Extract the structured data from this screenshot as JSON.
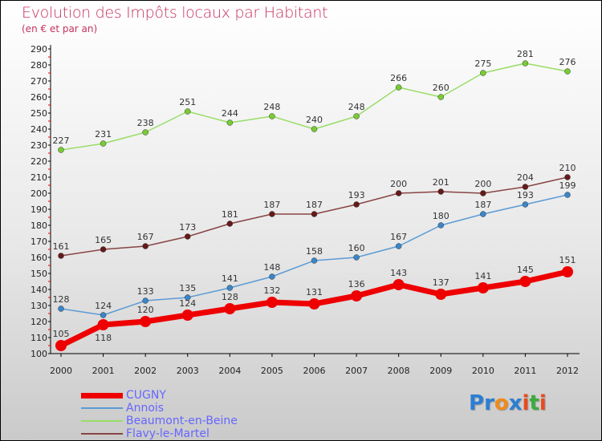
{
  "title": "Evolution des Impôts locaux par Habitant",
  "subtitle": "(en € et par an)",
  "logo": {
    "text": "Proxiti",
    "letters": [
      [
        "P",
        "#2a7fd4"
      ],
      [
        "r",
        "#2a7fd4"
      ],
      [
        "o",
        "#f08a1c"
      ],
      [
        "x",
        "#2a7fd4"
      ],
      [
        "i",
        "#e84c1c"
      ],
      [
        "t",
        "#3cab3c"
      ],
      [
        "i",
        "#e84c1c"
      ]
    ]
  },
  "chart_data": {
    "type": "line",
    "title": "Evolution des Impôts locaux par Habitant",
    "ylabel": "(en € et par an)",
    "x": [
      2000,
      2001,
      2002,
      2003,
      2004,
      2005,
      2006,
      2007,
      2008,
      2009,
      2010,
      2011,
      2012
    ],
    "ylim": [
      100,
      290
    ],
    "yticks": [
      100,
      110,
      120,
      130,
      140,
      150,
      160,
      170,
      180,
      190,
      200,
      210,
      220,
      230,
      240,
      250,
      260,
      270,
      280,
      290
    ],
    "legend_position": "bottom-left",
    "series": [
      {
        "name": "CUGNY",
        "color": "#ee0000",
        "width": 7,
        "r": 7,
        "values": [
          105,
          118,
          120,
          124,
          128,
          132,
          131,
          136,
          143,
          137,
          141,
          145,
          151
        ]
      },
      {
        "name": "Annois",
        "color": "#5b9bd5",
        "width": 1.5,
        "r": 3.5,
        "pt": "#3a86c8",
        "values": [
          128,
          124,
          133,
          135,
          141,
          148,
          158,
          160,
          167,
          180,
          187,
          193,
          199
        ]
      },
      {
        "name": "Beaumont-en-Beine",
        "color": "#99dd66",
        "width": 1.5,
        "r": 3.5,
        "pt": "#77cc33",
        "values": [
          227,
          231,
          238,
          251,
          244,
          248,
          240,
          248,
          266,
          260,
          275,
          281,
          276
        ]
      },
      {
        "name": "Flavy-le-Martel",
        "color": "#884444",
        "width": 1.5,
        "r": 3.5,
        "pt": "#661919",
        "values": [
          161,
          165,
          167,
          173,
          181,
          187,
          187,
          193,
          200,
          201,
          200,
          204,
          210
        ]
      }
    ]
  }
}
